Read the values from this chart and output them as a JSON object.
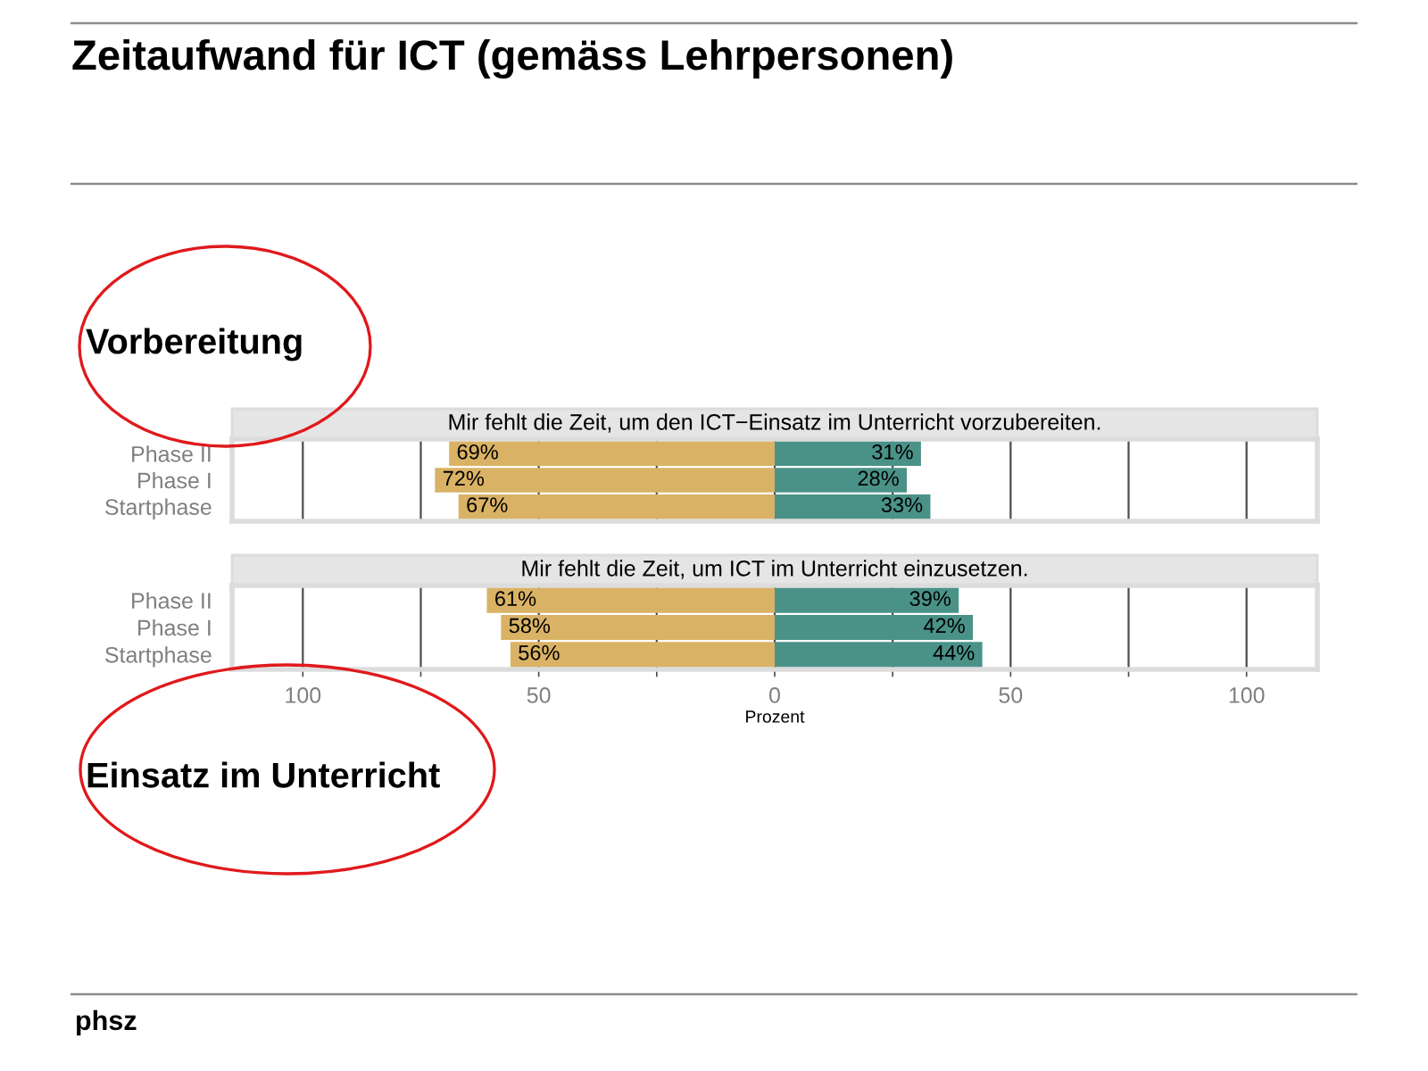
{
  "chart_data": [
    {
      "type": "bar",
      "orientation": "horizontal",
      "stacked": true,
      "title": "Mir fehlt die Zeit, um den ICT−Einsatz im Unterricht vorzubereiten.",
      "categories": [
        "Phase II",
        "Phase I",
        "Startphase"
      ],
      "series": [
        {
          "color": "#d9b265",
          "base": [
            -69,
            -72,
            -67
          ],
          "values": [
            69,
            72,
            67
          ],
          "value_labels": [
            "69%",
            "72%",
            "67%"
          ]
        },
        {
          "color": "#4a9288",
          "values": [
            31,
            28,
            33
          ],
          "value_labels": [
            "31%",
            "28%",
            "33%"
          ]
        }
      ],
      "xlim": [
        -115,
        115
      ],
      "xticks": [
        -100,
        -75,
        -50,
        -25,
        0,
        25,
        50,
        75,
        100
      ],
      "grid": "x",
      "tick_labels": "y",
      "annotations": [
        "Zeitaufwand für ICT (gemäss Lehrpersonen)",
        "Vorbereitung"
      ]
    },
    {
      "type": "bar",
      "orientation": "horizontal",
      "stacked": true,
      "title": "Mir fehlt die Zeit, um ICT im Unterricht einzusetzen.",
      "categories": [
        "Phase II",
        "Phase I",
        "Startphase"
      ],
      "series": [
        {
          "color": "#d9b265",
          "base": [
            -61,
            -58,
            -56
          ],
          "values": [
            61,
            58,
            56
          ],
          "value_labels": [
            "61%",
            "58%",
            "56%"
          ]
        },
        {
          "color": "#4a9288",
          "values": [
            39,
            42,
            44
          ],
          "value_labels": [
            "39%",
            "42%",
            "44%"
          ]
        }
      ],
      "xlim": [
        -115,
        115
      ],
      "xticks": [
        {
          "value": -100,
          "label": "100"
        },
        {
          "value": -75,
          "label": null
        },
        {
          "value": -50,
          "label": "50"
        },
        {
          "value": -25,
          "label": null
        },
        0,
        {
          "value": 25,
          "label": null
        },
        50,
        {
          "value": 75,
          "label": null
        },
        100
      ],
      "xlabel": "Prozent",
      "grid": "x",
      "annotations": [
        "Einsatz im Unterricht",
        "phsz"
      ]
    }
  ]
}
